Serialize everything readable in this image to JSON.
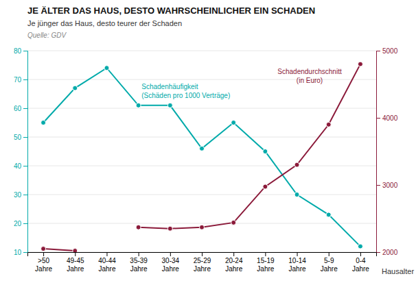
{
  "chart_data": {
    "type": "line",
    "title": "JE ÄLTER DAS HAUS, DESTO WAHRSCHEINLICHER EIN SCHADEN",
    "subtitle": "Je jünger das Haus, desto teurer der Schaden",
    "annotations": [
      "Quelle: GDV"
    ],
    "xlabel": "Hausalter",
    "categories": [
      ">50\nJahre",
      "49-45\nJahre",
      "40-44\nJahre",
      "35-39\nJahre",
      "30-34\nJahre",
      "25-29\nJahre",
      "20-24\nJahre",
      "15-19\nJahre",
      "10-14\nJahre",
      "5-9\nJahre",
      "0-4\nJahre"
    ],
    "series": [
      {
        "name": "Schadenhäufigkeit\n(Schäden pro 1000 Verträge)",
        "color": "#00AAAA",
        "marker": "circle",
        "values": [
          55,
          67,
          74,
          61,
          61,
          46,
          55,
          45,
          30,
          23,
          12
        ]
      },
      {
        "name": "Schadendurchschnitt\n(in Euro)",
        "color": "#8B1A3A",
        "marker": "circle",
        "axis": "y2",
        "values": [
          2050,
          2020,
          null,
          2370,
          2350,
          2370,
          2440,
          2975,
          3300,
          3900,
          4800
        ]
      }
    ],
    "ylim": [
      10,
      80
    ],
    "yticks": [
      10,
      20,
      30,
      40,
      50,
      60,
      70,
      80
    ],
    "y2lim": [
      2000,
      5000
    ],
    "y2ticks": [
      2000,
      3000,
      4000,
      5000
    ],
    "grid": true
  }
}
